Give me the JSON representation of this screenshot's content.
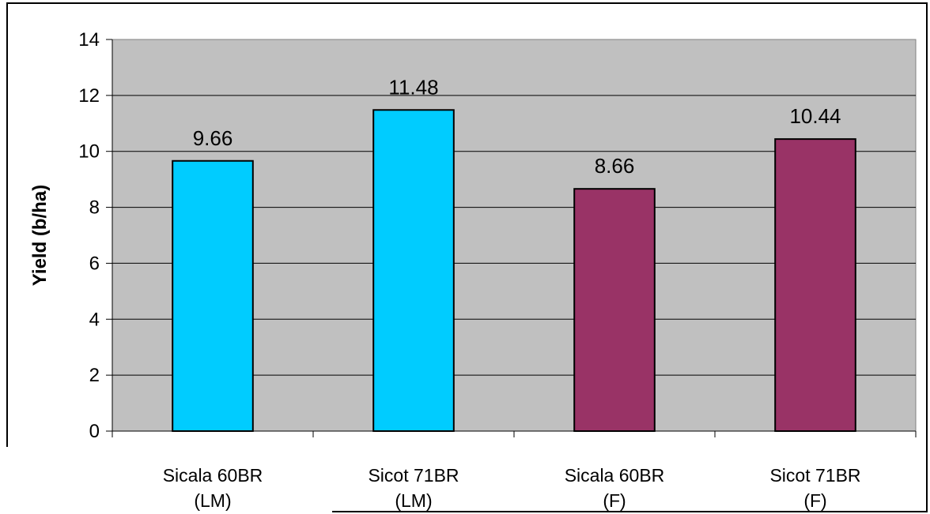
{
  "chart_data": {
    "type": "bar",
    "categories": [
      [
        "Sicala 60BR",
        "(LM)"
      ],
      [
        "Sicot 71BR",
        "(LM)"
      ],
      [
        "Sicala 60BR",
        "(F)"
      ],
      [
        "Sicot 71BR",
        "(F)"
      ]
    ],
    "values": [
      9.66,
      11.48,
      8.66,
      10.44
    ],
    "value_labels": [
      "9.66",
      "11.48",
      "8.66",
      "10.44"
    ],
    "bar_colors": [
      "#00ccff",
      "#00ccff",
      "#993366",
      "#993366"
    ],
    "plot_background": "#c0c0c0",
    "title": "",
    "xlabel": "",
    "ylabel": "Yield (b/ha)",
    "ylim": [
      0,
      14
    ],
    "yticks": [
      0,
      2,
      4,
      6,
      8,
      10,
      12,
      14
    ],
    "grid": true,
    "legend": "none"
  }
}
